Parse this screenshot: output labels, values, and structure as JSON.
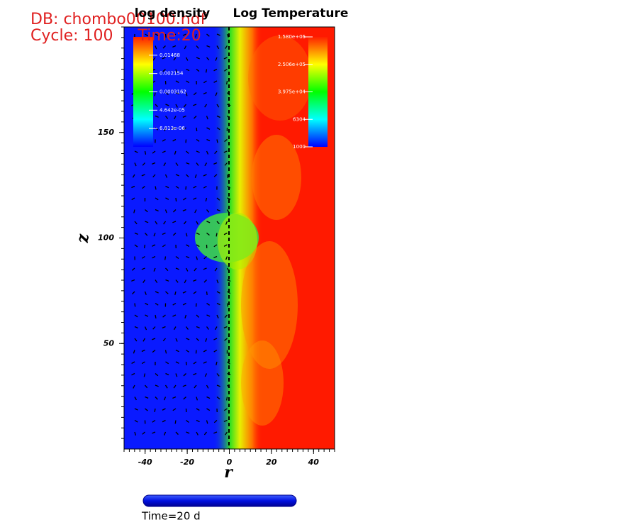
{
  "chart_data": {
    "type": "field",
    "db_label": "DB: chombo00100.hdf",
    "cycle_label": "Cycle: 100     Time:20",
    "left_title": "log density",
    "right_title": "Log Temperature",
    "xlabel": "r",
    "ylabel": "z",
    "xlim": [
      -50,
      50
    ],
    "ylim": [
      0,
      200
    ],
    "xticks": [
      -40,
      -20,
      0,
      20,
      40
    ],
    "yticks": [
      50,
      100,
      150
    ],
    "density_colorbar": {
      "log": true,
      "lim": [
        1e-06,
        0.1
      ],
      "ticks": [
        0.01468,
        0.002154,
        0.0003162,
        {
          "value": 4.642e-05,
          "label": "4.642e-05"
        },
        {
          "value": 6.813e-06,
          "label": "6.813e-06"
        }
      ]
    },
    "temperature_colorbar": {
      "log": true,
      "lim": [
        1000,
        1580000
      ],
      "ticks": [
        {
          "value": 1580000,
          "label": "1.580e+06"
        },
        {
          "value": 250600,
          "label": "2.506e+05"
        },
        {
          "value": 39750,
          "label": "3.975e+04"
        },
        6304,
        1000
      ]
    },
    "time_label": "Time=20 d"
  }
}
